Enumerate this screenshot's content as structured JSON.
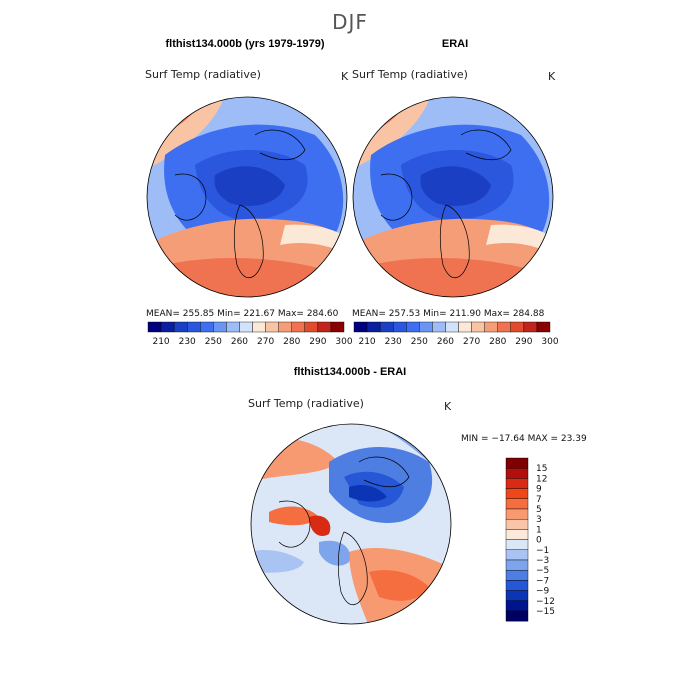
{
  "header": {
    "title": "DJF"
  },
  "panels": [
    {
      "id": "model",
      "subtitle": "flthist134.000b (yrs 1979-1979)",
      "variable": "Surf Temp (radiative)",
      "units": "K",
      "stats": "MEAN= 255.85   Min= 221.67   Max= 284.60"
    },
    {
      "id": "obs",
      "subtitle": "ERAI",
      "variable": "Surf Temp (radiative)",
      "units": "K",
      "stats": "MEAN= 257.53   Min= 211.90   Max= 284.88"
    }
  ],
  "abs_colorbar": {
    "ticks": [
      "210",
      "230",
      "250",
      "260",
      "270",
      "280",
      "290",
      "300"
    ],
    "colors": [
      "#00007f",
      "#0a1f9f",
      "#1b3fc2",
      "#2a57dd",
      "#3d6ff0",
      "#6a95f5",
      "#9ebdf7",
      "#d2e2fb",
      "#fbe8d6",
      "#f9c4a3",
      "#f59d76",
      "#ef7251",
      "#e14b2e",
      "#c0241a",
      "#8b0000"
    ]
  },
  "diff_panel": {
    "subtitle": "flthist134.000b - ERAI",
    "variable": "Surf Temp (radiative)",
    "units": "K",
    "stats": "MIN = −17.64  MAX =  23.39"
  },
  "diff_colorbar": {
    "labels": [
      "15",
      "12",
      "9",
      "7",
      "5",
      "3",
      "1",
      "0",
      "−1",
      "−3",
      "−5",
      "−7",
      "−9",
      "−12",
      "−15"
    ],
    "colors": [
      "#7f0000",
      "#b30d0d",
      "#d92b13",
      "#f0471a",
      "#f56e3f",
      "#f79a72",
      "#f9c5a8",
      "#fde9dc",
      "#dbe6f7",
      "#a9c3f2",
      "#7ea4ec",
      "#4f7ee3",
      "#2557d6",
      "#0b35b5",
      "#00148f",
      "#000060"
    ]
  }
}
